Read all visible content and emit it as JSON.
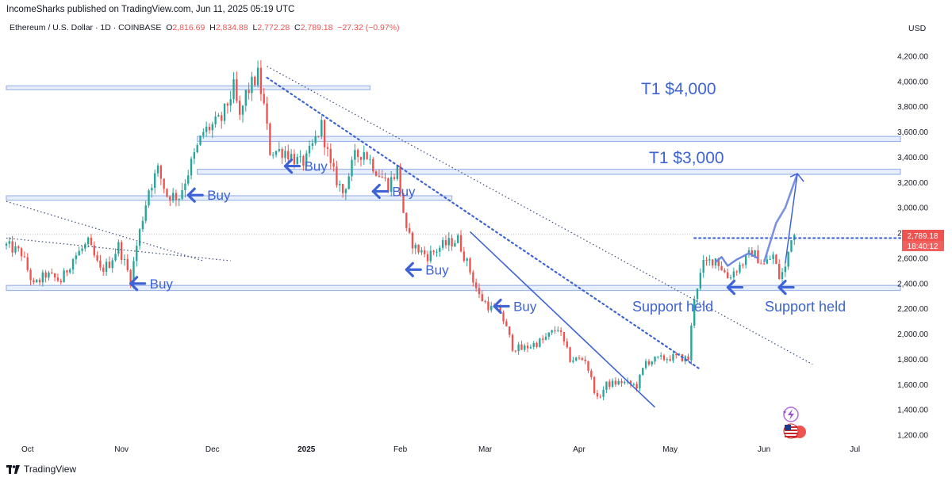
{
  "header": {
    "published": "IncomeSharks published on TradingView.com, Jun 11, 2025 05:19 UTC",
    "currency": "USD"
  },
  "symbol": {
    "name": "Ethereum / U.S. Dollar · 1D · COINBASE",
    "open_label": "O",
    "open": "2,816.69",
    "high_label": "H",
    "high": "2,834.88",
    "low_label": "L",
    "low": "2,772.28",
    "close_label": "C",
    "close": "2,789.18",
    "change": "−27.32 (−0.97%)"
  },
  "price_badge": {
    "price": "2,789.18",
    "countdown": "18:40:12",
    "color": "#ef5350"
  },
  "footer": {
    "brand": "TradingView"
  },
  "colors": {
    "up": "#26a69a",
    "down": "#ef5350",
    "annotation": "#3d63d6",
    "zone": "#bcd0f5"
  },
  "icons": [
    "tradingview-logo-icon",
    "lightning-badge-icon",
    "us-flag-icon"
  ],
  "chart_data": {
    "type": "candlestick",
    "title": "",
    "ylim": [
      1150,
      4300
    ],
    "y_ticks": [
      4200,
      4000,
      3800,
      3600,
      3400,
      3200,
      3000,
      2800,
      2600,
      2400,
      2200,
      2000,
      1800,
      1600,
      1400,
      1200
    ],
    "y_tick_labels": [
      "4,200.00",
      "4,000.00",
      "3,800.00",
      "3,600.00",
      "3,400.00",
      "3,200.00",
      "3,000.00",
      "2,800.00",
      "2,600.00",
      "2,400.00",
      "2,200.00",
      "2,000.00",
      "1,800.00",
      "1,600.00",
      "1,400.00",
      "1,200.00"
    ],
    "x_range": [
      "2024-09-24",
      "2025-07-16"
    ],
    "x_ticks": [
      {
        "date": "2024-10-01",
        "label": "Oct"
      },
      {
        "date": "2024-11-01",
        "label": "Nov"
      },
      {
        "date": "2024-12-01",
        "label": "Dec"
      },
      {
        "date": "2025-01-01",
        "label": "2025"
      },
      {
        "date": "2025-02-01",
        "label": "Feb"
      },
      {
        "date": "2025-03-01",
        "label": "Mar"
      },
      {
        "date": "2025-04-01",
        "label": "Apr"
      },
      {
        "date": "2025-05-01",
        "label": "May"
      },
      {
        "date": "2025-06-01",
        "label": "Jun"
      },
      {
        "date": "2025-07-01",
        "label": "Jul"
      }
    ],
    "anchors": [
      [
        "2024-09-24",
        2700
      ],
      [
        "2024-09-29",
        2640
      ],
      [
        "2024-10-03",
        2380
      ],
      [
        "2024-10-07",
        2470
      ],
      [
        "2024-10-12",
        2420
      ],
      [
        "2024-10-16",
        2600
      ],
      [
        "2024-10-21",
        2720
      ],
      [
        "2024-10-25",
        2500
      ],
      [
        "2024-10-28",
        2560
      ],
      [
        "2024-10-31",
        2700
      ],
      [
        "2024-11-04",
        2430
      ],
      [
        "2024-11-06",
        2700
      ],
      [
        "2024-11-10",
        3150
      ],
      [
        "2024-11-13",
        3300
      ],
      [
        "2024-11-16",
        3100
      ],
      [
        "2024-11-20",
        3090
      ],
      [
        "2024-11-24",
        3350
      ],
      [
        "2024-11-28",
        3600
      ],
      [
        "2024-12-04",
        3700
      ],
      [
        "2024-12-08",
        3950
      ],
      [
        "2024-12-10",
        3700
      ],
      [
        "2024-12-12",
        3900
      ],
      [
        "2024-12-16",
        4050
      ],
      [
        "2024-12-18",
        3800
      ],
      [
        "2024-12-20",
        3450
      ],
      [
        "2024-12-25",
        3450
      ],
      [
        "2024-12-30",
        3350
      ],
      [
        "2025-01-01",
        3380
      ],
      [
        "2025-01-06",
        3650
      ],
      [
        "2025-01-09",
        3320
      ],
      [
        "2025-01-13",
        3120
      ],
      [
        "2025-01-17",
        3400
      ],
      [
        "2025-01-20",
        3450
      ],
      [
        "2025-01-24",
        3300
      ],
      [
        "2025-01-28",
        3180
      ],
      [
        "2025-01-31",
        3300
      ],
      [
        "2025-02-03",
        2800
      ],
      [
        "2025-02-06",
        2680
      ],
      [
        "2025-02-10",
        2620
      ],
      [
        "2025-02-15",
        2700
      ],
      [
        "2025-02-20",
        2750
      ],
      [
        "2025-02-24",
        2500
      ],
      [
        "2025-02-27",
        2300
      ],
      [
        "2025-03-03",
        2200
      ],
      [
        "2025-03-06",
        2180
      ],
      [
        "2025-03-10",
        1900
      ],
      [
        "2025-03-13",
        1880
      ],
      [
        "2025-03-20",
        1950
      ],
      [
        "2025-03-25",
        2050
      ],
      [
        "2025-03-29",
        1800
      ],
      [
        "2025-04-03",
        1800
      ],
      [
        "2025-04-07",
        1480
      ],
      [
        "2025-04-10",
        1600
      ],
      [
        "2025-04-15",
        1620
      ],
      [
        "2025-04-20",
        1590
      ],
      [
        "2025-04-23",
        1780
      ],
      [
        "2025-04-27",
        1800
      ],
      [
        "2025-05-03",
        1820
      ],
      [
        "2025-05-07",
        1800
      ],
      [
        "2025-05-09",
        2300
      ],
      [
        "2025-05-12",
        2550
      ],
      [
        "2025-05-16",
        2600
      ],
      [
        "2025-05-20",
        2450
      ],
      [
        "2025-05-24",
        2540
      ],
      [
        "2025-05-28",
        2650
      ],
      [
        "2025-06-01",
        2550
      ],
      [
        "2025-06-04",
        2620
      ],
      [
        "2025-06-06",
        2450
      ],
      [
        "2025-06-08",
        2520
      ],
      [
        "2025-06-10",
        2780
      ],
      [
        "2025-06-11",
        2789
      ]
    ],
    "zones": [
      {
        "from": "2024-09-24",
        "to": "2025-01-22",
        "low": 3935,
        "high": 3965
      },
      {
        "from": "2024-11-26",
        "to": "2025-07-16",
        "low": 3525,
        "high": 3565
      },
      {
        "from": "2024-11-26",
        "to": "2025-07-16",
        "low": 3265,
        "high": 3305
      },
      {
        "from": "2024-09-24",
        "to": "2025-02-18",
        "low": 3060,
        "high": 3095
      },
      {
        "from": "2024-09-24",
        "to": "2025-07-16",
        "low": 2345,
        "high": 2385
      }
    ],
    "trendlines": [
      {
        "style": "dotted-thin",
        "from": [
          "2024-09-24",
          3050
        ],
        "to": [
          "2024-11-28",
          2580
        ]
      },
      {
        "style": "dotted-thin",
        "from": [
          "2024-09-24",
          2760
        ],
        "to": [
          "2024-12-07",
          2580
        ]
      },
      {
        "style": "dotted-thin",
        "from": [
          "2024-12-19",
          4120
        ],
        "to": [
          "2025-06-17",
          1760
        ]
      },
      {
        "style": "dotted-thick",
        "from": [
          "2024-12-19",
          4030
        ],
        "to": [
          "2025-05-11",
          1720
        ]
      },
      {
        "style": "solid",
        "from": [
          "2025-02-24",
          2810
        ],
        "to": [
          "2025-04-26",
          1420
        ]
      },
      {
        "style": "dotted-thick",
        "from": [
          "2025-05-09",
          2760
        ],
        "to": [
          "2025-07-16",
          2760
        ]
      }
    ],
    "current_price": 2789.18,
    "annotations": {
      "targets": [
        "T1 $4,000",
        "T1 $3,000"
      ],
      "buys": [
        {
          "label": "Buy",
          "date": "2024-11-04",
          "price": 2400
        },
        {
          "label": "Buy",
          "date": "2024-11-23",
          "price": 3100
        },
        {
          "label": "Buy",
          "date": "2024-12-25",
          "price": 3330
        },
        {
          "label": "Buy",
          "date": "2025-01-23",
          "price": 3130
        },
        {
          "label": "Buy",
          "date": "2025-02-03",
          "price": 2510
        },
        {
          "label": "Buy",
          "date": "2025-03-04",
          "price": 2220
        }
      ],
      "support": [
        {
          "label": "Support held",
          "date": "2025-05-19",
          "price": 2370
        },
        {
          "label": "Support held",
          "date": "2025-06-07",
          "price": 2370
        }
      ],
      "projection": [
        [
          "2025-06-01",
          2570
        ],
        [
          "2025-06-05",
          2880
        ],
        [
          "2025-06-08",
          3000
        ],
        [
          "2025-06-12",
          3270
        ]
      ]
    }
  }
}
